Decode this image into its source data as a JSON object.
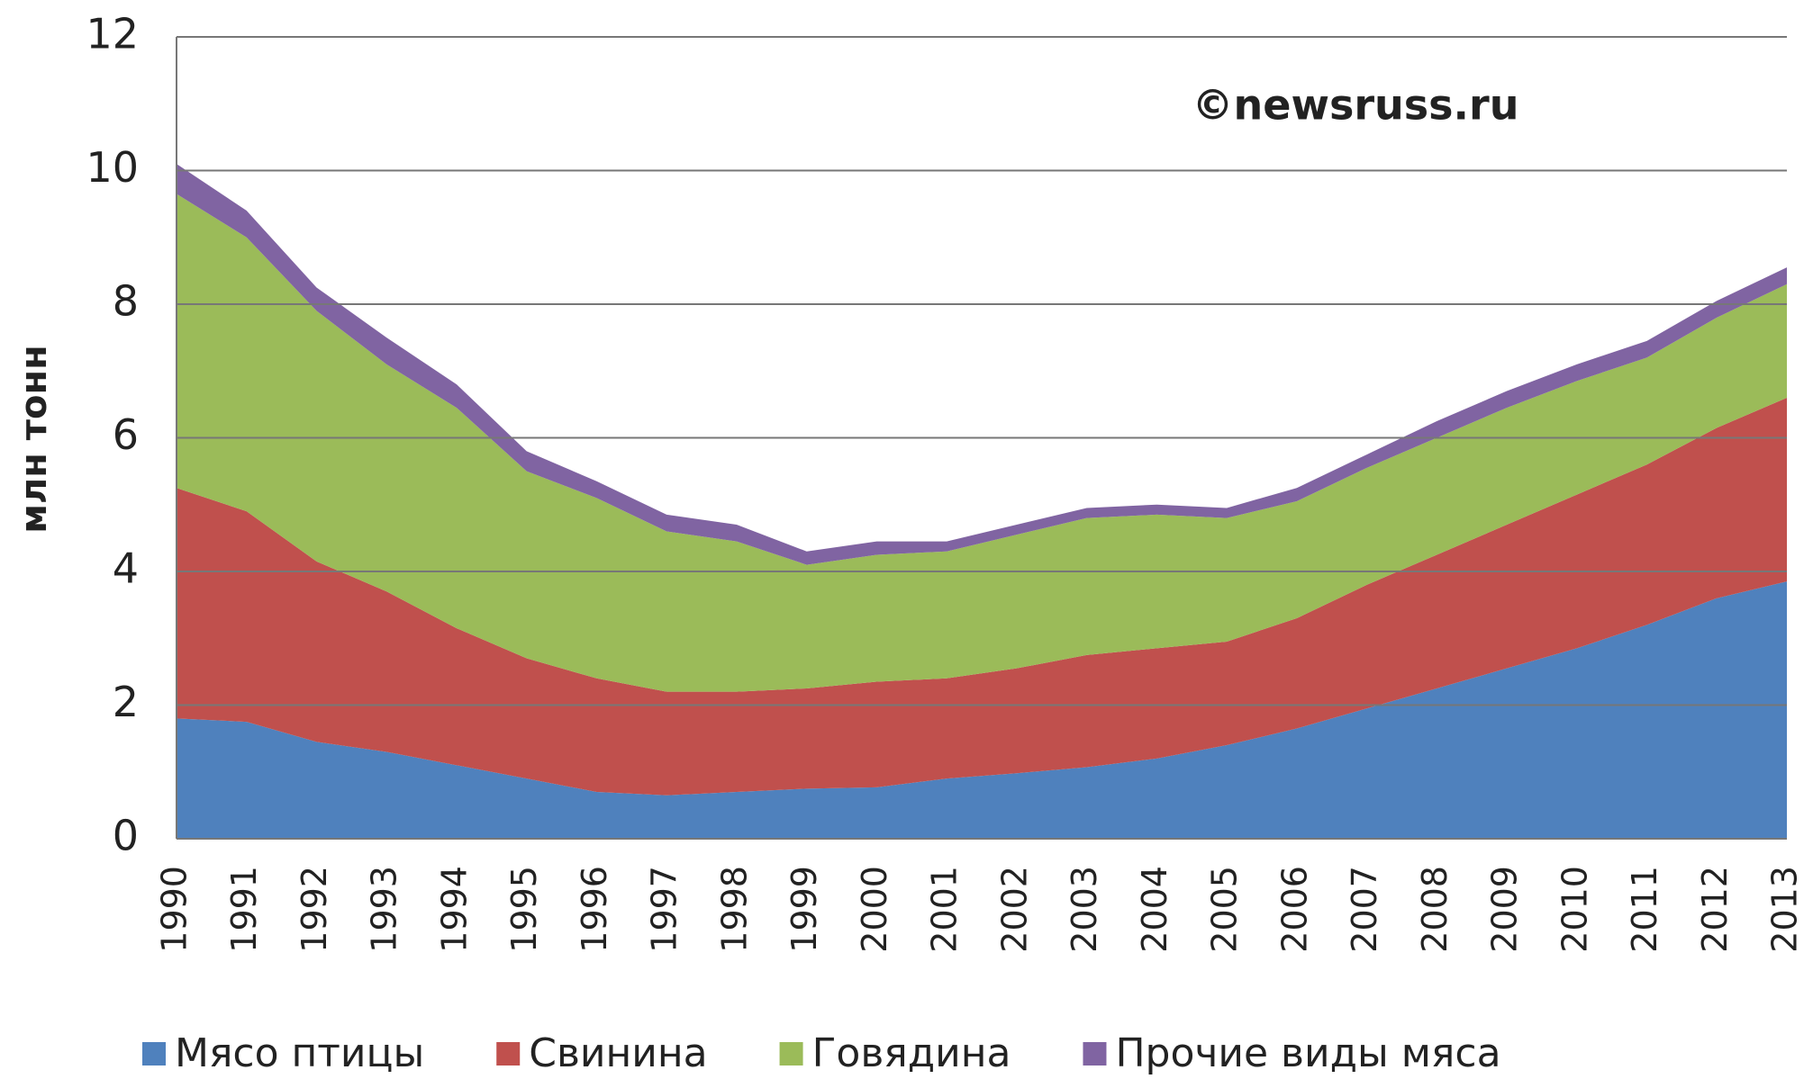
{
  "chart_data": {
    "type": "stacked_area",
    "y_label": "млн тонн",
    "annotation": "©newsruss.ru",
    "categories": [
      "1990",
      "1991",
      "1992",
      "1993",
      "1994",
      "1995",
      "1996",
      "1997",
      "1998",
      "1999",
      "2000",
      "2001",
      "2002",
      "2003",
      "2004",
      "2005",
      "2006",
      "2007",
      "2008",
      "2009",
      "2010",
      "2011",
      "2012",
      "2013"
    ],
    "series": [
      {
        "name": "Мясо птицы",
        "color": "#4f81bd",
        "values": [
          1.8,
          1.75,
          1.45,
          1.3,
          1.1,
          0.9,
          0.7,
          0.65,
          0.7,
          0.75,
          0.77,
          0.9,
          0.98,
          1.07,
          1.2,
          1.4,
          1.65,
          1.95,
          2.25,
          2.55,
          2.85,
          3.2,
          3.6,
          3.85
        ]
      },
      {
        "name": "Свинина",
        "color": "#c0504d",
        "values": [
          3.45,
          3.15,
          2.7,
          2.4,
          2.05,
          1.8,
          1.7,
          1.55,
          1.5,
          1.5,
          1.58,
          1.5,
          1.57,
          1.68,
          1.65,
          1.55,
          1.65,
          1.85,
          2.0,
          2.15,
          2.3,
          2.4,
          2.55,
          2.75
        ]
      },
      {
        "name": "Говядина",
        "color": "#9bbb59",
        "values": [
          4.4,
          4.1,
          3.75,
          3.4,
          3.3,
          2.8,
          2.7,
          2.4,
          2.25,
          1.85,
          1.9,
          1.9,
          2.0,
          2.05,
          2.0,
          1.85,
          1.75,
          1.75,
          1.75,
          1.75,
          1.7,
          1.6,
          1.65,
          1.7
        ]
      },
      {
        "name": "Прочие виды мяса",
        "color": "#8064a2",
        "values": [
          0.45,
          0.4,
          0.35,
          0.4,
          0.35,
          0.3,
          0.25,
          0.25,
          0.25,
          0.2,
          0.2,
          0.15,
          0.15,
          0.15,
          0.15,
          0.15,
          0.2,
          0.2,
          0.25,
          0.25,
          0.25,
          0.25,
          0.25,
          0.25
        ]
      }
    ],
    "ylim": [
      0,
      12
    ],
    "yticks": [
      0,
      2,
      4,
      6,
      8,
      10,
      12
    ],
    "grid": true,
    "legend": "bottom"
  }
}
